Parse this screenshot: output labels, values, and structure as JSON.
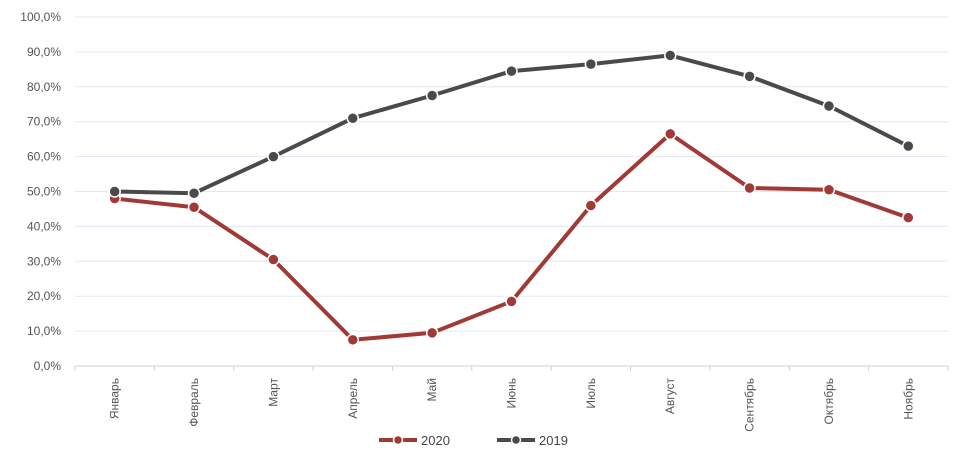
{
  "chart_data": {
    "type": "line",
    "title": "",
    "xlabel": "",
    "ylabel": "",
    "categories": [
      "Январь",
      "Февраль",
      "Март",
      "Апрель",
      "Май",
      "Июнь",
      "Июль",
      "Август",
      "Сентябрь",
      "Октябрь",
      "Ноябрь"
    ],
    "ylim": [
      0,
      100
    ],
    "yticks": [
      0,
      10,
      20,
      30,
      40,
      50,
      60,
      70,
      80,
      90,
      100
    ],
    "ytick_labels": [
      "0,0%",
      "10,0%",
      "20,0%",
      "30,0%",
      "40,0%",
      "50,0%",
      "60,0%",
      "70,0%",
      "80,0%",
      "90,0%",
      "100,0%"
    ],
    "grid": true,
    "legend_position": "bottom",
    "series": [
      {
        "name": "2020",
        "color": "#a13a36",
        "values": [
          48,
          45.5,
          30.5,
          7.5,
          9.5,
          18.5,
          46,
          66.5,
          51,
          50.5,
          42.5
        ]
      },
      {
        "name": "2019",
        "color": "#4a4a4a",
        "values": [
          50,
          49.5,
          60,
          71,
          77.5,
          84.5,
          86.5,
          89,
          83,
          74.5,
          63
        ]
      }
    ]
  }
}
